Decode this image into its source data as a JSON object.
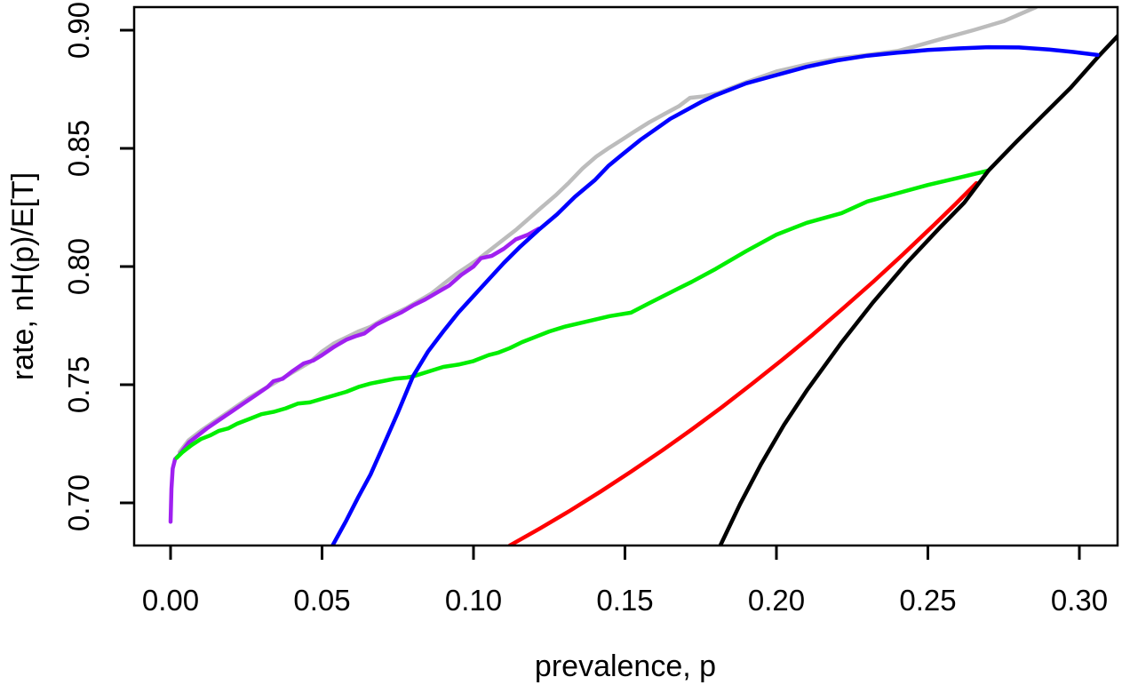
{
  "figure": {
    "background": "#ffffff",
    "text_color": "#000000"
  },
  "chart_data": {
    "type": "line",
    "title": "",
    "xlabel": "prevalence, p",
    "ylabel": "rate, nH(p)/E[T]",
    "xlim": [
      -0.01202,
      0.31261
    ],
    "ylim": [
      0.68195,
      0.90977
    ],
    "x_ticks": [
      0.0,
      0.05,
      0.1,
      0.15,
      0.2,
      0.25,
      0.3
    ],
    "x_tick_labels": [
      "0.00",
      "0.05",
      "0.10",
      "0.15",
      "0.20",
      "0.25",
      "0.30"
    ],
    "y_ticks": [
      0.7,
      0.75,
      0.8,
      0.85,
      0.9
    ],
    "y_tick_labels": [
      "0.70",
      "0.75",
      "0.80",
      "0.85",
      "0.90"
    ],
    "grid": false,
    "legend_position": "none",
    "series": [
      {
        "name": "gray",
        "color": "#bcbcbc",
        "points": [
          [
            0.003,
            0.7215
          ],
          [
            0.006,
            0.7265
          ],
          [
            0.01,
            0.7305
          ],
          [
            0.014,
            0.734
          ],
          [
            0.018,
            0.7375
          ],
          [
            0.022,
            0.741
          ],
          [
            0.026,
            0.7445
          ],
          [
            0.03,
            0.7475
          ],
          [
            0.034,
            0.7505
          ],
          [
            0.038,
            0.7535
          ],
          [
            0.042,
            0.7565
          ],
          [
            0.046,
            0.7595
          ],
          [
            0.05,
            0.764
          ],
          [
            0.054,
            0.7675
          ],
          [
            0.058,
            0.77
          ],
          [
            0.062,
            0.7725
          ],
          [
            0.066,
            0.7745
          ],
          [
            0.07,
            0.7775
          ],
          [
            0.074,
            0.78
          ],
          [
            0.078,
            0.7825
          ],
          [
            0.082,
            0.7855
          ],
          [
            0.086,
            0.7885
          ],
          [
            0.09,
            0.7925
          ],
          [
            0.0945,
            0.797
          ],
          [
            0.098,
            0.8
          ],
          [
            0.102,
            0.8035
          ],
          [
            0.106,
            0.8075
          ],
          [
            0.11,
            0.8115
          ],
          [
            0.114,
            0.8155
          ],
          [
            0.118,
            0.82
          ],
          [
            0.122,
            0.8245
          ],
          [
            0.127,
            0.83
          ],
          [
            0.1315,
            0.8355
          ],
          [
            0.136,
            0.8415
          ],
          [
            0.1405,
            0.8465
          ],
          [
            0.1445,
            0.85
          ],
          [
            0.1487,
            0.8534
          ],
          [
            0.153,
            0.857
          ],
          [
            0.158,
            0.861
          ],
          [
            0.163,
            0.8645
          ],
          [
            0.168,
            0.868
          ],
          [
            0.1715,
            0.8714
          ],
          [
            0.176,
            0.872
          ],
          [
            0.181,
            0.8735
          ],
          [
            0.19,
            0.878
          ],
          [
            0.2,
            0.8825
          ],
          [
            0.21,
            0.8855
          ],
          [
            0.22,
            0.888
          ],
          [
            0.23,
            0.8895
          ],
          [
            0.24,
            0.8912
          ],
          [
            0.2459,
            0.8932
          ],
          [
            0.255,
            0.8965
          ],
          [
            0.265,
            0.9
          ],
          [
            0.275,
            0.9038
          ],
          [
            0.2856,
            0.9097
          ]
        ]
      },
      {
        "name": "purple",
        "color": "#a020f0",
        "points": [
          [
            0.0,
            0.692
          ],
          [
            0.0003,
            0.706
          ],
          [
            0.0007,
            0.7145
          ],
          [
            0.0015,
            0.7185
          ],
          [
            0.003,
            0.7205
          ],
          [
            0.006,
            0.7255
          ],
          [
            0.009,
            0.7285
          ],
          [
            0.012,
            0.7315
          ],
          [
            0.016,
            0.735
          ],
          [
            0.02,
            0.7385
          ],
          [
            0.024,
            0.742
          ],
          [
            0.028,
            0.7455
          ],
          [
            0.032,
            0.749
          ],
          [
            0.034,
            0.7515
          ],
          [
            0.037,
            0.7525
          ],
          [
            0.04,
            0.7555
          ],
          [
            0.044,
            0.759
          ],
          [
            0.047,
            0.7602
          ],
          [
            0.05,
            0.7625
          ],
          [
            0.054,
            0.766
          ],
          [
            0.058,
            0.769
          ],
          [
            0.061,
            0.7705
          ],
          [
            0.064,
            0.7717
          ],
          [
            0.068,
            0.7755
          ],
          [
            0.072,
            0.778
          ],
          [
            0.076,
            0.7805
          ],
          [
            0.08,
            0.7835
          ],
          [
            0.084,
            0.786
          ],
          [
            0.088,
            0.789
          ],
          [
            0.092,
            0.792
          ],
          [
            0.096,
            0.7965
          ],
          [
            0.1,
            0.8
          ],
          [
            0.1024,
            0.8035
          ],
          [
            0.106,
            0.8045
          ],
          [
            0.11,
            0.8075
          ],
          [
            0.114,
            0.8115
          ],
          [
            0.118,
            0.8135
          ],
          [
            0.1215,
            0.816
          ]
        ]
      },
      {
        "name": "green",
        "color": "#00ee00",
        "points": [
          [
            0.002,
            0.719
          ],
          [
            0.004,
            0.7215
          ],
          [
            0.007,
            0.7245
          ],
          [
            0.01,
            0.727
          ],
          [
            0.013,
            0.7285
          ],
          [
            0.016,
            0.7305
          ],
          [
            0.019,
            0.7315
          ],
          [
            0.022,
            0.7335
          ],
          [
            0.026,
            0.7355
          ],
          [
            0.03,
            0.7375
          ],
          [
            0.034,
            0.7385
          ],
          [
            0.038,
            0.74
          ],
          [
            0.042,
            0.742
          ],
          [
            0.046,
            0.7425
          ],
          [
            0.05,
            0.744
          ],
          [
            0.054,
            0.7455
          ],
          [
            0.058,
            0.747
          ],
          [
            0.062,
            0.749
          ],
          [
            0.066,
            0.7505
          ],
          [
            0.07,
            0.7515
          ],
          [
            0.074,
            0.7525
          ],
          [
            0.078,
            0.753
          ],
          [
            0.08,
            0.7535
          ],
          [
            0.085,
            0.7555
          ],
          [
            0.09,
            0.7575
          ],
          [
            0.095,
            0.7585
          ],
          [
            0.1,
            0.76
          ],
          [
            0.105,
            0.7625
          ],
          [
            0.108,
            0.7635
          ],
          [
            0.112,
            0.7655
          ],
          [
            0.116,
            0.768
          ],
          [
            0.12,
            0.77
          ],
          [
            0.125,
            0.7725
          ],
          [
            0.13,
            0.7745
          ],
          [
            0.135,
            0.776
          ],
          [
            0.14,
            0.7775
          ],
          [
            0.145,
            0.779
          ],
          [
            0.152,
            0.7805
          ],
          [
            0.158,
            0.7845
          ],
          [
            0.165,
            0.789
          ],
          [
            0.172,
            0.7935
          ],
          [
            0.18,
            0.799
          ],
          [
            0.19,
            0.8065
          ],
          [
            0.2,
            0.8135
          ],
          [
            0.21,
            0.8185
          ],
          [
            0.2215,
            0.8226
          ],
          [
            0.23,
            0.8275
          ],
          [
            0.24,
            0.831
          ],
          [
            0.25,
            0.8345
          ],
          [
            0.26,
            0.8375
          ],
          [
            0.27,
            0.8406
          ]
        ]
      },
      {
        "name": "red",
        "color": "#ff0000",
        "points": [
          [
            0.112,
            0.682
          ],
          [
            0.122,
            0.6892
          ],
          [
            0.132,
            0.6968
          ],
          [
            0.142,
            0.7048
          ],
          [
            0.152,
            0.7132
          ],
          [
            0.162,
            0.7219
          ],
          [
            0.172,
            0.731
          ],
          [
            0.182,
            0.7405
          ],
          [
            0.192,
            0.7504
          ],
          [
            0.202,
            0.7606
          ],
          [
            0.212,
            0.7712
          ],
          [
            0.222,
            0.7823
          ],
          [
            0.232,
            0.7936
          ],
          [
            0.242,
            0.8054
          ],
          [
            0.252,
            0.8176
          ],
          [
            0.259,
            0.8263
          ],
          [
            0.266,
            0.8353
          ]
        ]
      },
      {
        "name": "black",
        "color": "#000000",
        "points": [
          [
            0.1815,
            0.682
          ],
          [
            0.188,
            0.6995
          ],
          [
            0.195,
            0.7165
          ],
          [
            0.2025,
            0.733
          ],
          [
            0.21,
            0.7475
          ],
          [
            0.2213,
            0.7675
          ],
          [
            0.232,
            0.785
          ],
          [
            0.243,
            0.8015
          ],
          [
            0.254,
            0.8165
          ],
          [
            0.262,
            0.827
          ],
          [
            0.27,
            0.8406
          ],
          [
            0.279,
            0.8525
          ],
          [
            0.288,
            0.864
          ],
          [
            0.297,
            0.8755
          ],
          [
            0.306,
            0.8885
          ],
          [
            0.313,
            0.898
          ]
        ]
      },
      {
        "name": "blue",
        "color": "#0000ff",
        "points": [
          [
            0.0535,
            0.682
          ],
          [
            0.058,
            0.6925
          ],
          [
            0.062,
            0.7025
          ],
          [
            0.066,
            0.712
          ],
          [
            0.07,
            0.7235
          ],
          [
            0.075,
            0.738
          ],
          [
            0.08,
            0.7535
          ],
          [
            0.085,
            0.764
          ],
          [
            0.09,
            0.7725
          ],
          [
            0.095,
            0.7805
          ],
          [
            0.1,
            0.7875
          ],
          [
            0.105,
            0.7945
          ],
          [
            0.11,
            0.8015
          ],
          [
            0.1155,
            0.8085
          ],
          [
            0.1215,
            0.8155
          ],
          [
            0.1275,
            0.822
          ],
          [
            0.1335,
            0.8295
          ],
          [
            0.14,
            0.8365
          ],
          [
            0.1445,
            0.8425
          ],
          [
            0.1487,
            0.847
          ],
          [
            0.155,
            0.8535
          ],
          [
            0.16,
            0.858
          ],
          [
            0.165,
            0.8625
          ],
          [
            0.17,
            0.866
          ],
          [
            0.175,
            0.8695
          ],
          [
            0.18,
            0.8725
          ],
          [
            0.19,
            0.8775
          ],
          [
            0.2,
            0.881
          ],
          [
            0.21,
            0.8845
          ],
          [
            0.22,
            0.8872
          ],
          [
            0.23,
            0.8892
          ],
          [
            0.24,
            0.8905
          ],
          [
            0.25,
            0.8916
          ],
          [
            0.26,
            0.8923
          ],
          [
            0.27,
            0.8928
          ],
          [
            0.28,
            0.8927
          ],
          [
            0.29,
            0.8918
          ],
          [
            0.298,
            0.8908
          ],
          [
            0.306,
            0.8895
          ]
        ]
      }
    ]
  }
}
